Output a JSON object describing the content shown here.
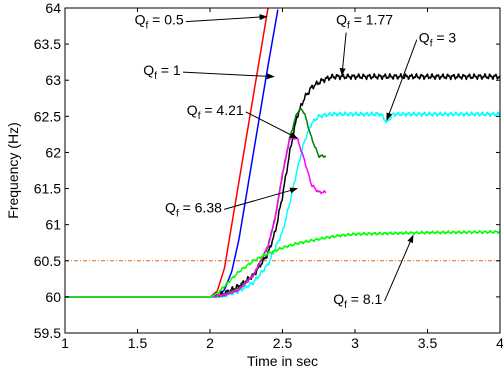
{
  "chart_data": {
    "type": "line",
    "xlabel": "Time in sec",
    "ylabel": "Frequency (Hz)",
    "xlim": [
      1,
      4
    ],
    "ylim": [
      59.5,
      64
    ],
    "xticks": [
      1,
      1.5,
      2,
      2.5,
      3,
      3.5,
      4
    ],
    "yticks": [
      59.5,
      60,
      60.5,
      61,
      61.5,
      62,
      62.5,
      63,
      63.5,
      64
    ],
    "xtick_labels": [
      "1",
      "1.5",
      "2",
      "2.5",
      "3",
      "3.5",
      "4"
    ],
    "ytick_labels": [
      "59.5",
      "60",
      "60.5",
      "61",
      "61.5",
      "62",
      "62.5",
      "63",
      "63.5",
      "64"
    ],
    "threshold": {
      "y": 60.5,
      "color": "#d2691e"
    },
    "series": [
      {
        "label": "Qf = 0.5",
        "label_main": "Q",
        "label_sub": "f",
        "label_rest": " = 0.5",
        "color": "#ff0000",
        "x": [
          1,
          2.0,
          2.05,
          2.1,
          2.2,
          2.3,
          2.4
        ],
        "y": [
          60,
          60,
          60.08,
          60.4,
          61.6,
          62.8,
          64.0
        ],
        "wiggle": 0,
        "label_at": [
          1.48,
          63.77
        ],
        "arrow_to": [
          2.39,
          63.88
        ]
      },
      {
        "label": "Qf = 1",
        "label_main": "Q",
        "label_sub": "f",
        "label_rest": " = 1",
        "color": "#0000ff",
        "x": [
          1,
          2.0,
          2.05,
          2.1,
          2.15,
          2.2,
          2.3,
          2.4,
          2.47
        ],
        "y": [
          60,
          60,
          60.0,
          60.1,
          60.35,
          60.8,
          62.0,
          63.2,
          64.0
        ],
        "wiggle": 0,
        "label_at": [
          1.54,
          63.07
        ],
        "arrow_to": [
          2.44,
          63.05
        ]
      },
      {
        "label": "Qf = 1.77",
        "label_main": "Q",
        "label_sub": "f",
        "label_rest": " = 1.77",
        "color": "#000000",
        "x": [
          1,
          2.0,
          2.1,
          2.2,
          2.3,
          2.4,
          2.45,
          2.5,
          2.55,
          2.6,
          2.65,
          2.7,
          2.75,
          2.8,
          2.85,
          2.9,
          3.0,
          4.0
        ],
        "y": [
          60,
          60,
          60.05,
          60.15,
          60.3,
          60.6,
          60.9,
          61.4,
          62.0,
          62.5,
          62.75,
          62.9,
          62.97,
          63.02,
          63.05,
          63.05,
          63.05,
          63.05
        ],
        "wiggle": 0.04,
        "label_at": [
          2.87,
          63.77
        ],
        "arrow_to": [
          2.91,
          63.07
        ]
      },
      {
        "label": "Qf = 3",
        "label_main": "Q",
        "label_sub": "f",
        "label_rest": " = 3",
        "color": "#00ffff",
        "x": [
          1,
          2.0,
          2.1,
          2.2,
          2.3,
          2.4,
          2.5,
          2.55,
          2.6,
          2.65,
          2.7,
          2.75,
          2.8,
          2.85,
          2.9,
          3.0,
          4.0
        ],
        "y": [
          60,
          60,
          60.02,
          60.08,
          60.2,
          60.45,
          60.9,
          61.3,
          61.75,
          62.15,
          62.4,
          62.5,
          62.52,
          62.53,
          62.53,
          62.53,
          62.53
        ],
        "wiggle": 0.03,
        "dip": {
          "x": 3.22,
          "depth": 0.12
        },
        "label_at": [
          3.44,
          63.52
        ],
        "arrow_to": [
          3.22,
          62.45
        ]
      },
      {
        "label": "Qf = 4.21",
        "label_main": "Q",
        "label_sub": "f",
        "label_rest": " = 4.21",
        "color": "#008000",
        "x": [
          1,
          2.0,
          2.1,
          2.2,
          2.3,
          2.4,
          2.45,
          2.5,
          2.55,
          2.6,
          2.63,
          2.65,
          2.7,
          2.75,
          2.8
        ],
        "y": [
          60,
          60,
          60.03,
          60.12,
          60.3,
          60.7,
          61.1,
          61.7,
          62.2,
          62.55,
          62.6,
          62.55,
          62.2,
          61.95,
          61.95
        ],
        "wiggle": 0.02,
        "osc": {
          "from": 2.8,
          "to": 4.0,
          "mean": 62.05,
          "amp": 0.2,
          "period": 0.28,
          "phase": 0.05
        },
        "label_at": [
          1.84,
          62.52
        ],
        "arrow_to": [
          2.6,
          62.2
        ]
      },
      {
        "label": "Qf = 6.38",
        "label_main": "Q",
        "label_sub": "f",
        "label_rest": " = 6.38",
        "color": "#ff00ff",
        "x": [
          1,
          2.0,
          2.1,
          2.2,
          2.3,
          2.4,
          2.45,
          2.5,
          2.55,
          2.6,
          2.65,
          2.7,
          2.75,
          2.8
        ],
        "y": [
          60,
          60,
          60.03,
          60.1,
          60.3,
          60.7,
          61.1,
          61.7,
          62.2,
          62.2,
          61.9,
          61.55,
          61.45,
          61.45
        ],
        "wiggle": 0.02,
        "osc": {
          "from": 2.8,
          "to": 4.0,
          "mean": 61.5,
          "amp": 0.15,
          "period": 0.28,
          "phase": 0.1
        },
        "label_at": [
          1.69,
          61.17
        ],
        "arrow_to": [
          2.6,
          61.5
        ]
      },
      {
        "label": "Qf = 8.1",
        "label_main": "Q",
        "label_sub": "f",
        "label_rest": " = 8.1",
        "color": "#00ff00",
        "x": [
          1,
          2.0,
          2.05,
          2.1,
          2.2,
          2.3,
          2.4,
          2.5,
          2.6,
          2.7,
          2.8,
          2.9,
          3.0,
          3.5,
          4.0
        ],
        "y": [
          60,
          60,
          60.05,
          60.15,
          60.35,
          60.5,
          60.6,
          60.68,
          60.74,
          60.78,
          60.82,
          60.85,
          60.87,
          60.89,
          60.9
        ],
        "wiggle": 0.02,
        "label_at": [
          2.85,
          59.9
        ],
        "arrow_to": [
          3.4,
          60.85
        ]
      }
    ]
  }
}
